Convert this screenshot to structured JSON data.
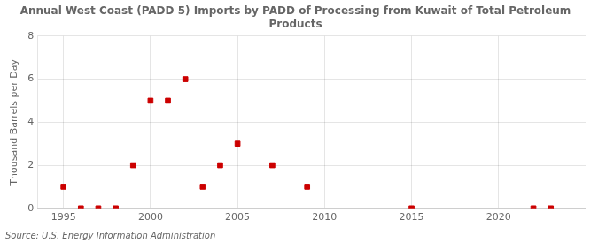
{
  "chart_data": {
    "type": "scatter",
    "title": "Annual West Coast (PADD 5) Imports by PADD of Processing from Kuwait of Total Petroleum\nProducts",
    "ylabel": "Thousand Barrels per Day",
    "source": "Source: U.S. Energy Information Administration",
    "x": [
      1995,
      1996,
      1997,
      1998,
      1999,
      2000,
      2001,
      2002,
      2003,
      2004,
      2005,
      2007,
      2009,
      2015,
      2022,
      2023
    ],
    "values": [
      1,
      0,
      0,
      0,
      2,
      5,
      5,
      6,
      1,
      2,
      3,
      2,
      1,
      0,
      0,
      0
    ],
    "color": "#cc0000",
    "marker": "square",
    "xlim": [
      1993.5,
      2025
    ],
    "ylim": [
      0,
      8
    ],
    "xticks": [
      1995,
      2000,
      2005,
      2010,
      2015,
      2020
    ],
    "yticks": [
      0,
      2,
      4,
      6,
      8
    ],
    "grid": true
  }
}
